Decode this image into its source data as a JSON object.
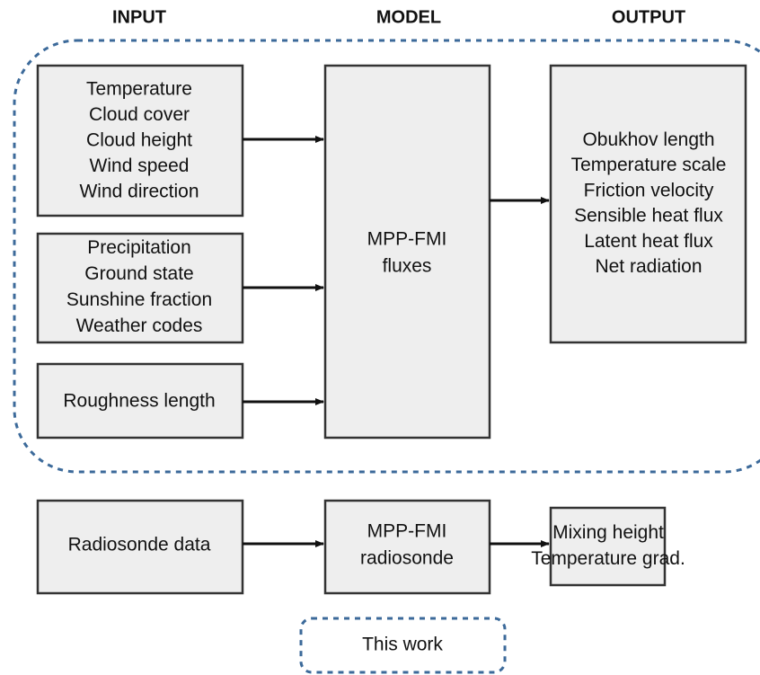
{
  "headers": [
    "INPUT",
    "MODEL",
    "OUTPUT"
  ],
  "nodes": [
    {
      "lines": [
        "Temperature",
        "Cloud cover",
        "Cloud height",
        "Wind speed",
        "Wind direction"
      ]
    },
    {
      "lines": [
        "Precipitation",
        "Ground state",
        "Sunshine fraction",
        "Weather codes"
      ]
    },
    {
      "lines": [
        "Roughness length"
      ]
    },
    {
      "lines": [
        "MPP-FMI",
        "fluxes"
      ]
    },
    {
      "lines": [
        "Obukhov length",
        "Temperature scale",
        "Friction velocity",
        "Sensible heat flux",
        "Latent heat flux",
        "Net radiation"
      ]
    },
    {
      "lines": [
        "Radiosonde data"
      ]
    },
    {
      "lines": [
        "MPP-FMI",
        "radiosonde"
      ]
    },
    {
      "lines": [
        "Mixing height",
        "Temperature grad."
      ]
    }
  ],
  "legend": {
    "label": "This work"
  }
}
